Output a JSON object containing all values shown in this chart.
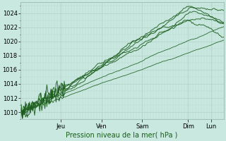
{
  "title": "Pression niveau de la mer( hPa )",
  "bg_color": "#c8e8e0",
  "plot_bg_color": "#c8e8e0",
  "grid_major_color": "#b0d0c8",
  "grid_minor_color": "#b8d8d0",
  "line_color": "#1a5c1a",
  "ylim": [
    1009.0,
    1025.5
  ],
  "yticks": [
    1010,
    1012,
    1014,
    1016,
    1018,
    1020,
    1022,
    1024
  ],
  "xlim": [
    0,
    1.0
  ],
  "day_labels": [
    "Jeu",
    "Ven",
    "Sam",
    "Dim",
    "Lun"
  ],
  "day_positions": [
    0.2,
    0.4,
    0.6,
    0.825,
    0.9375
  ],
  "n_points": 200,
  "ylabel_fontsize": 6,
  "xlabel_fontsize": 7,
  "tick_fontsize": 6
}
